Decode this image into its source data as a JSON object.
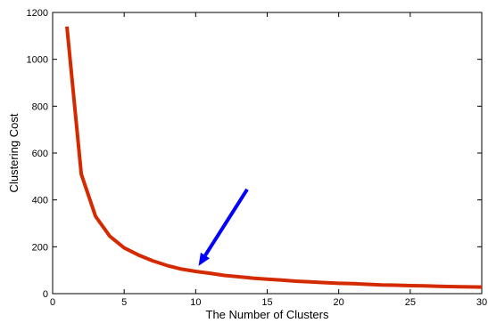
{
  "chart_data": {
    "type": "line",
    "xlabel": "The Number of Clusters",
    "ylabel": "Clustering Cost",
    "xlim": [
      0,
      30
    ],
    "ylim": [
      0,
      1200
    ],
    "xticks": [
      0,
      5,
      10,
      15,
      20,
      25,
      30
    ],
    "yticks": [
      0,
      200,
      400,
      600,
      800,
      1000,
      1200
    ],
    "grid": false,
    "series": [
      {
        "color": "#d42a00",
        "x": [
          1,
          2,
          3,
          4,
          5,
          6,
          7,
          8,
          9,
          10,
          11,
          12,
          13,
          14,
          15,
          16,
          17,
          18,
          19,
          20,
          21,
          22,
          23,
          24,
          25,
          26,
          27,
          28,
          29,
          30
        ],
        "y": [
          1140,
          510,
          330,
          245,
          195,
          165,
          140,
          120,
          105,
          95,
          87,
          78,
          72,
          66,
          62,
          58,
          53,
          50,
          47,
          44,
          43,
          40,
          37,
          36,
          34,
          33,
          31,
          30,
          29,
          28
        ]
      }
    ],
    "annotation": {
      "type": "arrow",
      "color": "#0000ff",
      "from": [
        13.6,
        445
      ],
      "to": [
        10.2,
        118
      ]
    }
  }
}
